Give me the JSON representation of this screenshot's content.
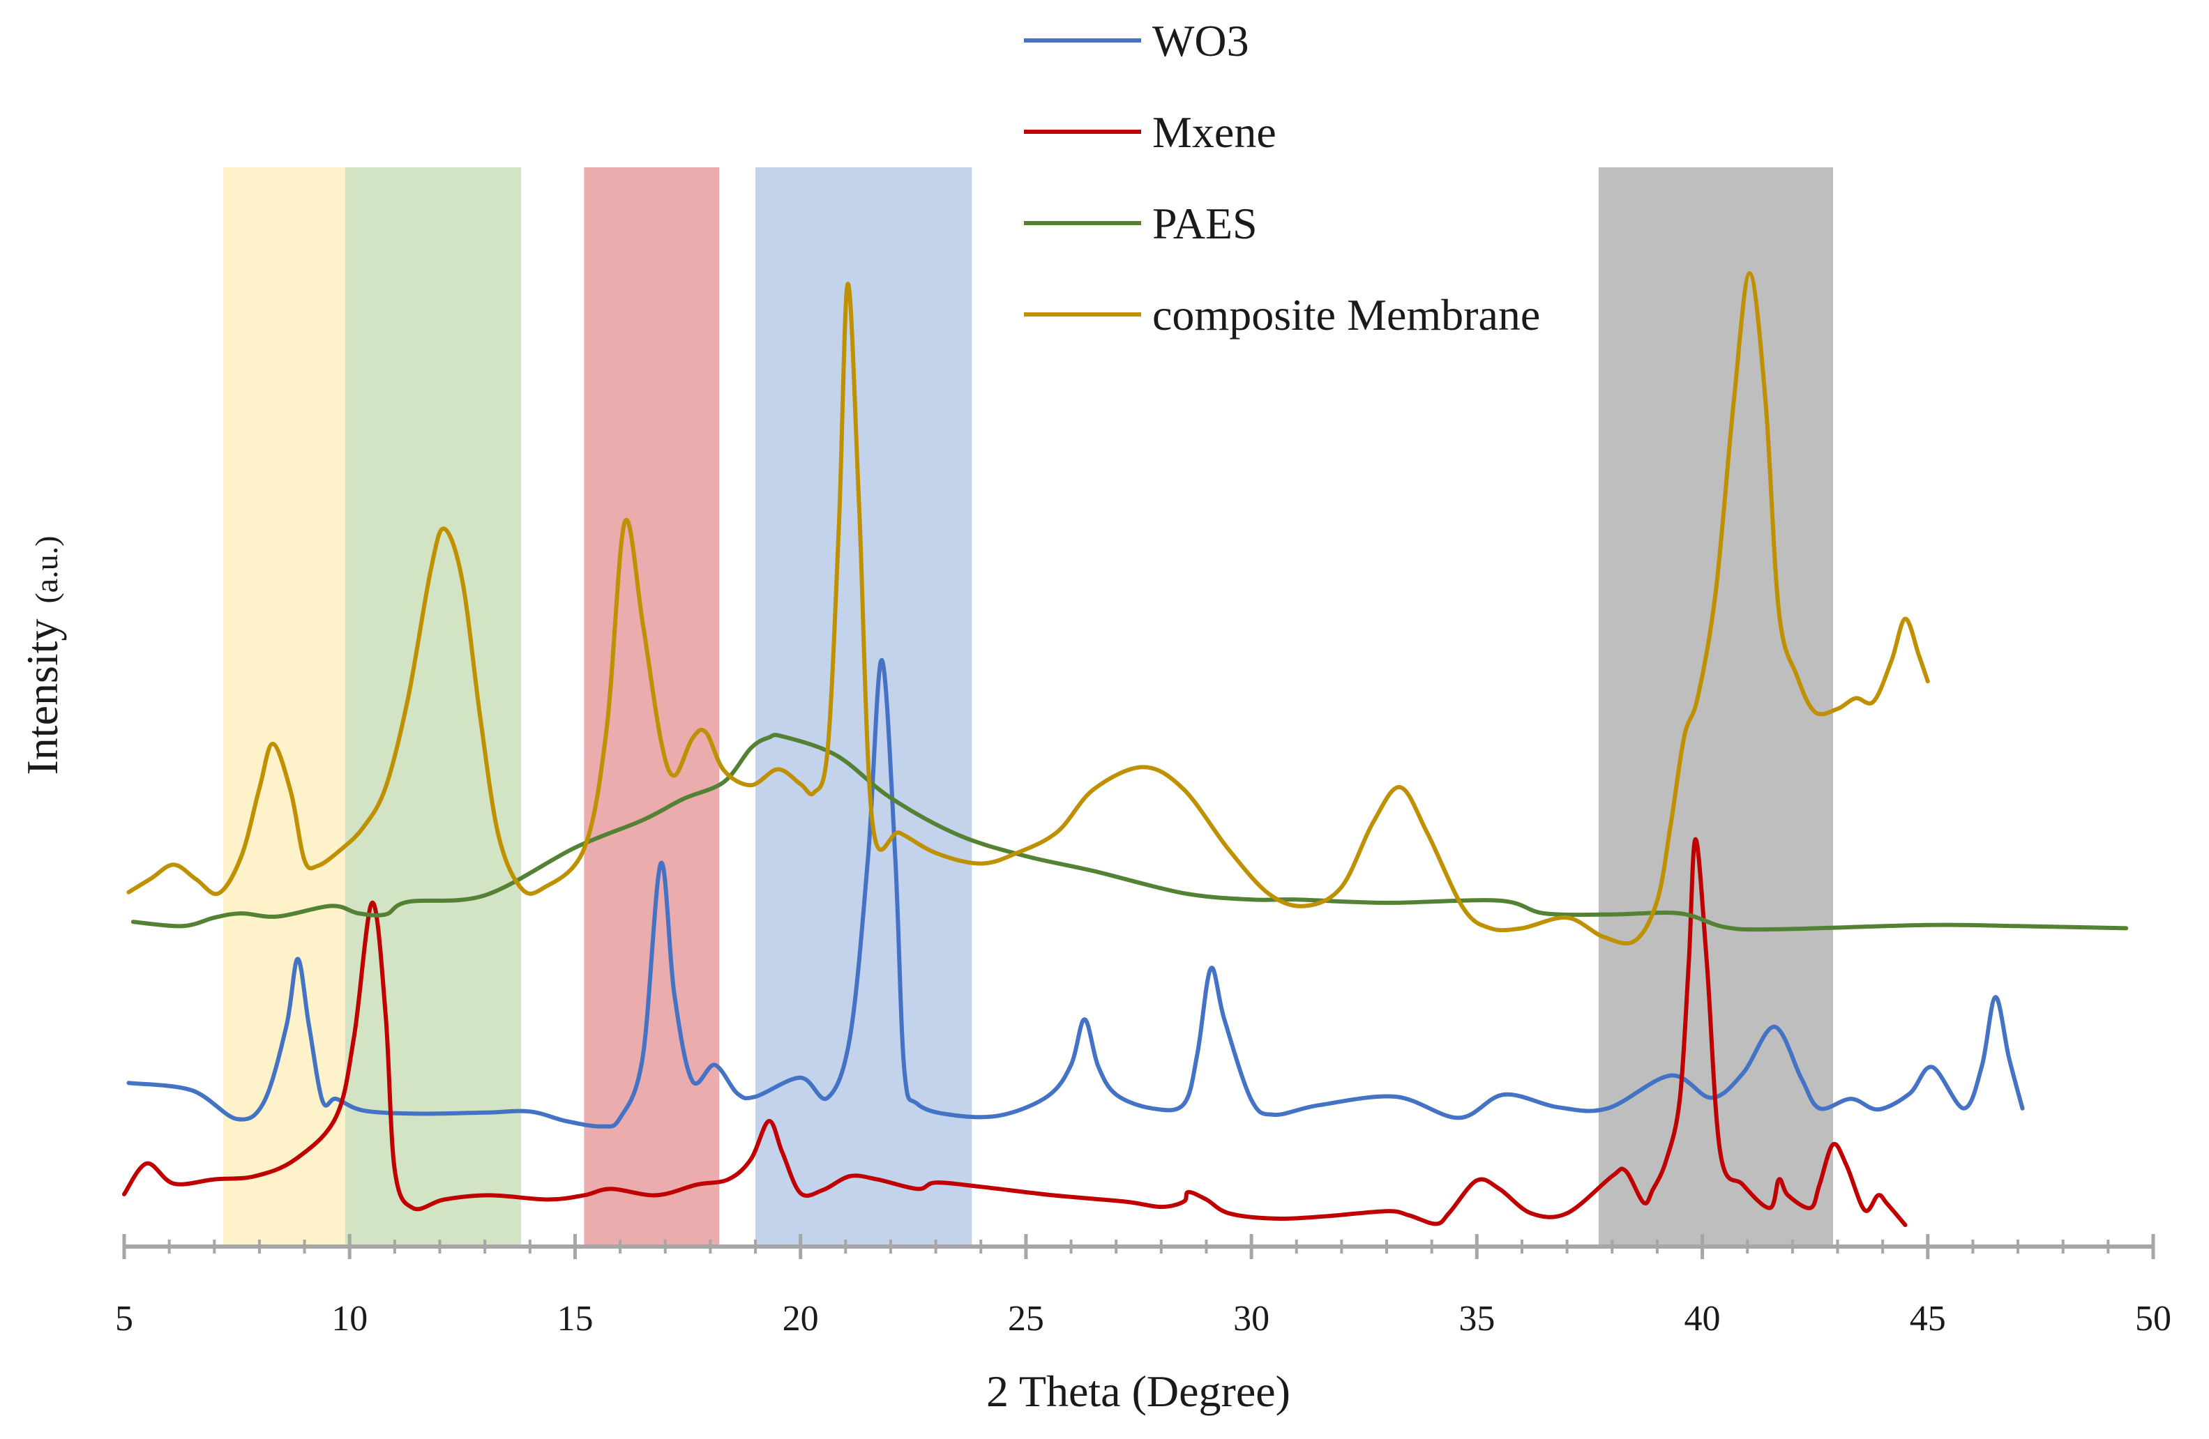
{
  "chart_data": {
    "type": "line",
    "title": "",
    "xlabel": "2 Theta (Degree)",
    "ylabel": "Intensity",
    "ylabel_unit": "(a.u.)",
    "xlim": [
      5,
      50
    ],
    "x_ticks": [
      5,
      10,
      15,
      20,
      25,
      30,
      35,
      40,
      45,
      50
    ],
    "ylim": [
      0,
      100
    ],
    "grid": false,
    "legend_position": "top-center",
    "highlight_bands": [
      {
        "x0": 7.2,
        "x1": 9.9,
        "color": "#fdf2c9"
      },
      {
        "x0": 9.9,
        "x1": 13.8,
        "color": "#d2e4c4"
      },
      {
        "x0": 15.2,
        "x1": 18.2,
        "color": "#ebacad"
      },
      {
        "x0": 19.0,
        "x1": 23.8,
        "color": "#c4d3ec"
      },
      {
        "x0": 37.7,
        "x1": 42.9,
        "color": "#bebebe"
      }
    ],
    "series": [
      {
        "name": "WO3",
        "color": "#4472c4",
        "points": [
          [
            5.1,
            13.6
          ],
          [
            6.5,
            12.9
          ],
          [
            7.5,
            10.2
          ],
          [
            8.1,
            11.8
          ],
          [
            8.6,
            19.0
          ],
          [
            8.85,
            25.3
          ],
          [
            9.1,
            19.0
          ],
          [
            9.4,
            11.9
          ],
          [
            9.7,
            12.1
          ],
          [
            10.3,
            11.0
          ],
          [
            11.5,
            10.7
          ],
          [
            13,
            10.8
          ],
          [
            14,
            10.9
          ],
          [
            14.8,
            10.0
          ],
          [
            15.6,
            9.5
          ],
          [
            16,
            10.3
          ],
          [
            16.5,
            16
          ],
          [
            16.9,
            34.3
          ],
          [
            17.2,
            22
          ],
          [
            17.6,
            13.8
          ],
          [
            18.1,
            15.3
          ],
          [
            18.6,
            12.6
          ],
          [
            19,
            12.3
          ],
          [
            20,
            14.1
          ],
          [
            20.6,
            12.2
          ],
          [
            21.1,
            18
          ],
          [
            21.5,
            35
          ],
          [
            21.8,
            53.5
          ],
          [
            22.1,
            35
          ],
          [
            22.3,
            15
          ],
          [
            22.6,
            11.6
          ],
          [
            23.5,
            10.5
          ],
          [
            24.5,
            10.6
          ],
          [
            25.5,
            12.4
          ],
          [
            26,
            15.3
          ],
          [
            26.3,
            19.6
          ],
          [
            26.6,
            15.2
          ],
          [
            27,
            12.5
          ],
          [
            27.8,
            11.2
          ],
          [
            28.5,
            11.6
          ],
          [
            28.8,
            16.3
          ],
          [
            29.1,
            24.4
          ],
          [
            29.4,
            19.6
          ],
          [
            30,
            12.0
          ],
          [
            30.5,
            10.6
          ],
          [
            31.5,
            11.5
          ],
          [
            33.2,
            12.3
          ],
          [
            34.6,
            10.3
          ],
          [
            35.6,
            12.5
          ],
          [
            36.8,
            11.3
          ],
          [
            37.9,
            11.2
          ],
          [
            39.3,
            14.3
          ],
          [
            40.2,
            12.2
          ],
          [
            40.9,
            14.5
          ],
          [
            41.6,
            18.9
          ],
          [
            42.2,
            14
          ],
          [
            42.6,
            11.2
          ],
          [
            43.3,
            12.1
          ],
          [
            43.9,
            11.1
          ],
          [
            44.6,
            12.6
          ],
          [
            45.1,
            15.1
          ],
          [
            45.8,
            11.2
          ],
          [
            46.2,
            15.2
          ],
          [
            46.5,
            21.7
          ],
          [
            46.8,
            16
          ],
          [
            47.1,
            11.2
          ]
        ]
      },
      {
        "name": "Mxene",
        "color": "#c00000",
        "points": [
          [
            5,
            3.1
          ],
          [
            5.5,
            6.0
          ],
          [
            6.1,
            4.1
          ],
          [
            7,
            4.5
          ],
          [
            7.9,
            4.8
          ],
          [
            8.8,
            6.4
          ],
          [
            9.7,
            10.4
          ],
          [
            10.1,
            18
          ],
          [
            10.5,
            30.6
          ],
          [
            10.8,
            20
          ],
          [
            11.0,
            5.4
          ],
          [
            11.4,
            1.8
          ],
          [
            12.1,
            2.6
          ],
          [
            13.1,
            3.0
          ],
          [
            14.4,
            2.6
          ],
          [
            15.2,
            3.0
          ],
          [
            15.8,
            3.6
          ],
          [
            16.8,
            3.0
          ],
          [
            17.7,
            4.0
          ],
          [
            18.4,
            4.5
          ],
          [
            18.9,
            6.4
          ],
          [
            19.3,
            10.0
          ],
          [
            19.6,
            7.0
          ],
          [
            20.0,
            3.2
          ],
          [
            20.5,
            3.5
          ],
          [
            21.1,
            4.8
          ],
          [
            21.7,
            4.5
          ],
          [
            22.6,
            3.6
          ],
          [
            23.0,
            4.2
          ],
          [
            24,
            3.8
          ],
          [
            25.6,
            3.0
          ],
          [
            27.2,
            2.4
          ],
          [
            28,
            1.9
          ],
          [
            28.5,
            2.4
          ],
          [
            28.6,
            3.3
          ],
          [
            29,
            2.6
          ],
          [
            29.5,
            1.3
          ],
          [
            30.5,
            0.8
          ],
          [
            31.6,
            1.0
          ],
          [
            33,
            1.5
          ],
          [
            33.5,
            1.1
          ],
          [
            34.1,
            0.3
          ],
          [
            34.4,
            1.4
          ],
          [
            35,
            4.4
          ],
          [
            35.5,
            3.6
          ],
          [
            36.2,
            1.3
          ],
          [
            37,
            1.3
          ],
          [
            38,
            4.8
          ],
          [
            38.3,
            5.3
          ],
          [
            38.7,
            2.3
          ],
          [
            38.9,
            3.5
          ],
          [
            39.2,
            6.3
          ],
          [
            39.5,
            12
          ],
          [
            39.7,
            25
          ],
          [
            39.85,
            36.6
          ],
          [
            40.1,
            25
          ],
          [
            40.4,
            7.0
          ],
          [
            40.9,
            4.0
          ],
          [
            41.5,
            1.8
          ],
          [
            41.7,
            4.5
          ],
          [
            41.9,
            3.0
          ],
          [
            42.4,
            1.8
          ],
          [
            42.6,
            4.0
          ],
          [
            42.9,
            7.8
          ],
          [
            43.2,
            5.8
          ],
          [
            43.6,
            1.6
          ],
          [
            43.9,
            3.0
          ],
          [
            44.1,
            2.2
          ],
          [
            44.5,
            0.2
          ]
        ]
      },
      {
        "name": "PAES",
        "color": "#548235",
        "points": [
          [
            5.2,
            28.8
          ],
          [
            6.3,
            28.4
          ],
          [
            7,
            29.2
          ],
          [
            7.6,
            29.6
          ],
          [
            8.4,
            29.3
          ],
          [
            9.6,
            30.3
          ],
          [
            10.2,
            29.6
          ],
          [
            10.8,
            29.5
          ],
          [
            11.3,
            30.7
          ],
          [
            13,
            31.3
          ],
          [
            15,
            35.8
          ],
          [
            16.5,
            38.4
          ],
          [
            17.4,
            40.4
          ],
          [
            18.3,
            42.0
          ],
          [
            18.9,
            45.2
          ],
          [
            19.3,
            46.2
          ],
          [
            19.6,
            46.3
          ],
          [
            20.8,
            44.5
          ],
          [
            22,
            40.5
          ],
          [
            23.5,
            37.0
          ],
          [
            25,
            35.0
          ],
          [
            26.5,
            33.6
          ],
          [
            28.5,
            31.5
          ],
          [
            30,
            30.9
          ],
          [
            31,
            30.9
          ],
          [
            33,
            30.6
          ],
          [
            35.5,
            30.8
          ],
          [
            36.5,
            29.6
          ],
          [
            38,
            29.5
          ],
          [
            39.5,
            29.6
          ],
          [
            40.5,
            28.3
          ],
          [
            41.6,
            28.1
          ],
          [
            45,
            28.5
          ],
          [
            47,
            28.4
          ],
          [
            49.4,
            28.2
          ]
        ]
      },
      {
        "name": "composite Membrane",
        "color": "#bf9000",
        "points": [
          [
            5.1,
            31.6
          ],
          [
            5.6,
            32.9
          ],
          [
            6.1,
            34.2
          ],
          [
            6.6,
            32.8
          ],
          [
            7.1,
            31.5
          ],
          [
            7.6,
            35
          ],
          [
            8.0,
            41.4
          ],
          [
            8.3,
            45.6
          ],
          [
            8.7,
            41
          ],
          [
            9.0,
            34.6
          ],
          [
            9.3,
            34.1
          ],
          [
            9.8,
            35.6
          ],
          [
            10.3,
            37.7
          ],
          [
            10.8,
            41.5
          ],
          [
            11.3,
            50
          ],
          [
            11.8,
            62
          ],
          [
            12.1,
            65.9
          ],
          [
            12.5,
            61
          ],
          [
            12.9,
            48
          ],
          [
            13.3,
            37
          ],
          [
            13.8,
            32.0
          ],
          [
            14.3,
            32.0
          ],
          [
            15.2,
            35.7
          ],
          [
            15.7,
            47
          ],
          [
            16.1,
            66.5
          ],
          [
            16.5,
            57
          ],
          [
            16.9,
            46
          ],
          [
            17.2,
            42.6
          ],
          [
            17.6,
            46.1
          ],
          [
            17.9,
            46.7
          ],
          [
            18.3,
            43.1
          ],
          [
            18.9,
            41.7
          ],
          [
            19.5,
            43.2
          ],
          [
            20.0,
            41.8
          ],
          [
            20.3,
            41.0
          ],
          [
            20.6,
            45
          ],
          [
            20.85,
            66
          ],
          [
            21.05,
            89.0
          ],
          [
            21.3,
            68
          ],
          [
            21.6,
            38.0
          ],
          [
            22.2,
            37.2
          ],
          [
            23,
            35.3
          ],
          [
            24,
            34.3
          ],
          [
            24.8,
            35.3
          ],
          [
            25.7,
            37.3
          ],
          [
            26.5,
            41.3
          ],
          [
            27.6,
            43.4
          ],
          [
            28.5,
            41.3
          ],
          [
            29.5,
            35.6
          ],
          [
            30.4,
            31.4
          ],
          [
            31.2,
            30.3
          ],
          [
            32,
            32.1
          ],
          [
            32.7,
            38.2
          ],
          [
            33.3,
            41.5
          ],
          [
            33.9,
            37.2
          ],
          [
            34.7,
            30.1
          ],
          [
            35.3,
            28.2
          ],
          [
            36,
            28.2
          ],
          [
            37,
            29.2
          ],
          [
            37.8,
            27.4
          ],
          [
            38.5,
            27.0
          ],
          [
            39,
            30.8
          ],
          [
            39.3,
            38
          ],
          [
            39.6,
            46.3
          ],
          [
            39.9,
            50
          ],
          [
            40.3,
            60
          ],
          [
            40.7,
            78
          ],
          [
            41.05,
            90.0
          ],
          [
            41.4,
            78
          ],
          [
            41.7,
            58
          ],
          [
            42.1,
            52
          ],
          [
            42.5,
            48.6
          ],
          [
            43,
            48.9
          ],
          [
            43.4,
            49.9
          ],
          [
            43.8,
            49.6
          ],
          [
            44.2,
            53.5
          ],
          [
            44.5,
            57.4
          ],
          [
            44.8,
            54
          ],
          [
            45,
            51.5
          ]
        ]
      }
    ]
  }
}
